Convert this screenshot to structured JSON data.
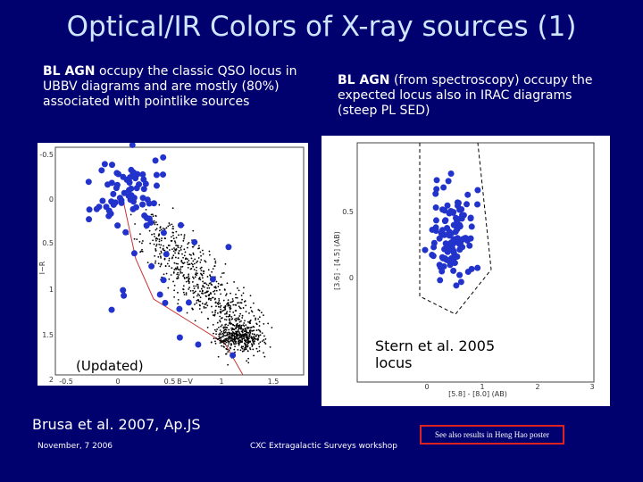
{
  "title": "Optical/IR Colors of X-ray sources (1)",
  "left_text": {
    "highlight": "BL AGN",
    "text": " occupy the classic QSO locus in UBBV diagrams and are mostly (80%) associated with pointlike sources"
  },
  "right_text": {
    "highlight": "BL AGN",
    "text": " (from spectroscopy) occupy the expected locus also in IRAC diagrams (steep PL SED)"
  },
  "left_plot": {
    "y_label": "I−R",
    "x_label": "B−V",
    "yticks": [
      "-0.5",
      "0",
      "0.5",
      "1",
      "1.5",
      "2"
    ],
    "xticks": [
      "-0.5",
      "0",
      "0.5",
      "1",
      "1.5"
    ],
    "note": "(Updated)"
  },
  "right_plot": {
    "y_label": "[3.6] - [4.5] (AB)",
    "x_label": "[5.8] - [8.0] (AB)",
    "yticks": [
      "0.5",
      "0"
    ],
    "xticks": [
      "0",
      "1",
      "2",
      "3"
    ],
    "note": "Stern et al. 2005 locus"
  },
  "citation": "Brusa et al. 2007, Ap.JS",
  "footer": {
    "date": "November, 7 2006",
    "workshop": "CXC Extragalactic Surveys workshop",
    "poster": "See also results in Heng Hao poster"
  }
}
